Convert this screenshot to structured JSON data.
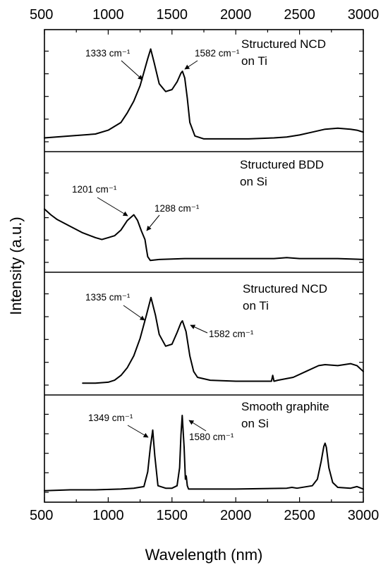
{
  "chart_data": {
    "type": "line",
    "xlabel": "Wavelength (nm)",
    "ylabel": "Intensity (a.u.)",
    "xlim": [
      500,
      3000
    ],
    "xticks": [
      "500",
      "1000",
      "1500",
      "2000",
      "2500",
      "3000"
    ],
    "xtick_values": [
      500,
      1000,
      1500,
      2000,
      2500,
      3000
    ],
    "panels": [
      {
        "label_lines": [
          "Structured NCD",
          "on Ti"
        ],
        "ylim": [
          0,
          1
        ],
        "series": [
          {
            "x": [
              500,
              700,
              900,
              1000,
              1100,
              1150,
              1200,
              1250,
              1280,
              1310,
              1333,
              1360,
              1400,
              1450,
              1500,
              1540,
              1570,
              1582,
              1600,
              1620,
              1640,
              1680,
              1750,
              1900,
              2100,
              2300,
              2400,
              2500,
              2600,
              2700,
              2800,
              2900,
              2950,
              3000
            ],
            "y": [
              0.04,
              0.06,
              0.08,
              0.12,
              0.2,
              0.3,
              0.42,
              0.58,
              0.72,
              0.86,
              0.96,
              0.82,
              0.6,
              0.52,
              0.54,
              0.62,
              0.71,
              0.73,
              0.66,
              0.45,
              0.2,
              0.06,
              0.03,
              0.03,
              0.03,
              0.04,
              0.05,
              0.07,
              0.1,
              0.13,
              0.14,
              0.13,
              0.12,
              0.1
            ]
          }
        ],
        "annotations": [
          {
            "text": "1333 cm⁻¹",
            "x": 1333
          },
          {
            "text": "1582 cm⁻¹",
            "x": 1582
          }
        ]
      },
      {
        "label_lines": [
          "Structured BDD",
          "on Si"
        ],
        "ylim": [
          0,
          1
        ],
        "series": [
          {
            "x": [
              500,
              550,
              600,
              700,
              800,
              900,
              950,
              1000,
              1050,
              1100,
              1150,
              1201,
              1230,
              1260,
              1288,
              1300,
              1310,
              1330,
              1400,
              1600,
              2000,
              2300,
              2400,
              2500,
              2800,
              3000
            ],
            "y": [
              0.56,
              0.5,
              0.45,
              0.38,
              0.31,
              0.26,
              0.24,
              0.26,
              0.28,
              0.34,
              0.44,
              0.5,
              0.44,
              0.33,
              0.24,
              0.14,
              0.06,
              0.02,
              0.03,
              0.04,
              0.04,
              0.04,
              0.05,
              0.04,
              0.04,
              0.03
            ]
          }
        ],
        "annotations": [
          {
            "text": "1201 cm⁻¹",
            "x": 1201
          },
          {
            "text": "1288 cm⁻¹",
            "x": 1288
          }
        ]
      },
      {
        "label_lines": [
          "Structured NCD",
          "on Ti"
        ],
        "ylim": [
          0,
          1
        ],
        "series": [
          {
            "x": [
              800,
              900,
              1000,
              1050,
              1100,
              1150,
              1200,
              1250,
              1300,
              1335,
              1370,
              1400,
              1450,
              1500,
              1540,
              1570,
              1582,
              1610,
              1640,
              1670,
              1700,
              1800,
              2000,
              2250,
              2280,
              2290,
              2300,
              2330,
              2450,
              2550,
              2650,
              2700,
              2800,
              2900,
              2950,
              3000
            ],
            "y": [
              0.02,
              0.02,
              0.03,
              0.05,
              0.1,
              0.18,
              0.3,
              0.48,
              0.72,
              0.9,
              0.72,
              0.52,
              0.4,
              0.42,
              0.54,
              0.64,
              0.66,
              0.55,
              0.3,
              0.14,
              0.08,
              0.05,
              0.04,
              0.04,
              0.04,
              0.1,
              0.04,
              0.05,
              0.08,
              0.14,
              0.2,
              0.21,
              0.2,
              0.22,
              0.2,
              0.14
            ]
          }
        ],
        "annotations": [
          {
            "text": "1335 cm⁻¹",
            "x": 1335
          },
          {
            "text": "1582 cm⁻¹",
            "x": 1582
          }
        ]
      },
      {
        "label_lines": [
          "Smooth graphite",
          "on Si"
        ],
        "ylim": [
          0,
          1
        ],
        "series": [
          {
            "x": [
              500,
              700,
              900,
              1100,
              1200,
              1280,
              1310,
              1330,
              1349,
              1365,
              1390,
              1450,
              1500,
              1540,
              1560,
              1570,
              1580,
              1595,
              1605,
              1612,
              1620,
              1630,
              1650,
              1800,
              2000,
              2400,
              2440,
              2480,
              2600,
              2640,
              2670,
              2690,
              2700,
              2710,
              2730,
              2760,
              2800,
              2900,
              2950,
              3000
            ],
            "y": [
              0.02,
              0.03,
              0.03,
              0.04,
              0.05,
              0.07,
              0.25,
              0.55,
              0.76,
              0.45,
              0.08,
              0.05,
              0.05,
              0.08,
              0.3,
              0.7,
              0.94,
              0.55,
              0.16,
              0.2,
              0.08,
              0.04,
              0.04,
              0.04,
              0.04,
              0.05,
              0.06,
              0.05,
              0.08,
              0.16,
              0.38,
              0.56,
              0.6,
              0.55,
              0.3,
              0.12,
              0.06,
              0.05,
              0.07,
              0.04
            ]
          }
        ],
        "annotations": [
          {
            "text": "1349 cm⁻¹",
            "x": 1349
          },
          {
            "text": "1580 cm⁻¹",
            "x": 1580
          }
        ]
      }
    ]
  }
}
